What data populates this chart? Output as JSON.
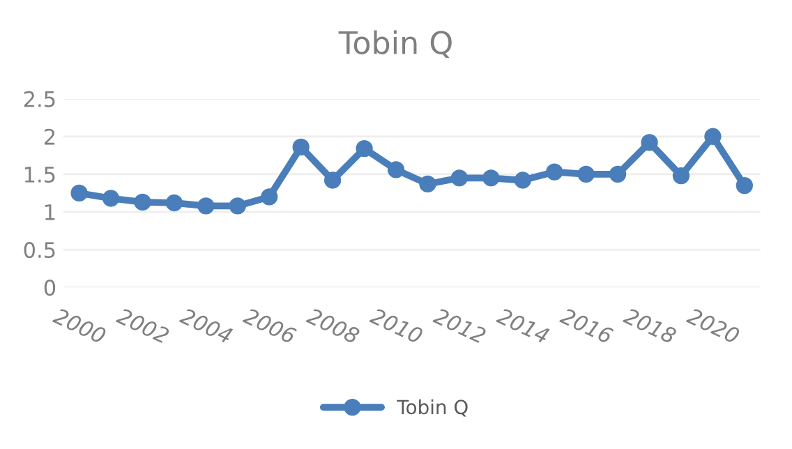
{
  "chart_data": {
    "type": "line",
    "title": "Tobin Q",
    "categories": [
      "2000",
      null,
      "2002",
      null,
      "2004",
      null,
      "2006",
      null,
      "2008",
      null,
      "2010",
      null,
      "2012",
      null,
      "2014",
      null,
      "2016",
      null,
      "2018",
      null,
      "2020",
      null
    ],
    "series": [
      {
        "name": "Tobin Q",
        "color": "#4a7ebb",
        "values": [
          1.25,
          1.18,
          1.13,
          1.12,
          1.08,
          1.08,
          1.2,
          1.86,
          1.42,
          1.84,
          1.56,
          1.37,
          1.45,
          1.45,
          1.42,
          1.53,
          1.5,
          1.5,
          1.92,
          1.48,
          2.0,
          1.35
        ]
      }
    ],
    "ylim": [
      0,
      2.5
    ],
    "yticks": [
      0,
      0.5,
      1,
      1.5,
      2,
      2.5
    ],
    "grid": "y",
    "legend": "bottom",
    "marker": "circle",
    "line_style": "solid"
  }
}
